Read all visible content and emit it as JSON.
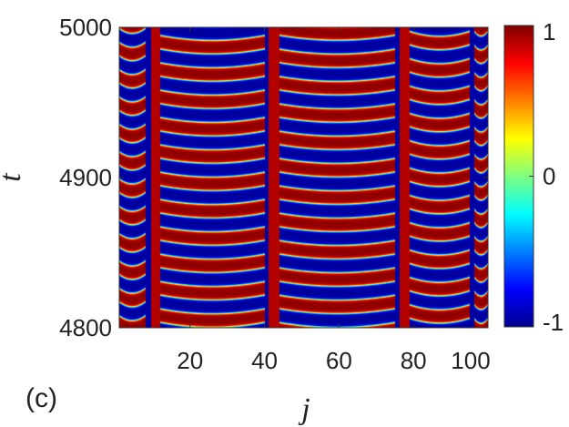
{
  "chart_data": {
    "type": "heatmap",
    "title": "",
    "panel_label": "(c)",
    "xlabel": "j",
    "ylabel": "t",
    "xlim": [
      1,
      100
    ],
    "ylim": [
      4800,
      5000
    ],
    "x_ticks": [
      20,
      40,
      60,
      80,
      100
    ],
    "y_ticks": [
      4800,
      4900,
      5000
    ],
    "colorbar": {
      "range": [
        -1,
        1
      ],
      "ticks": [
        -1,
        0,
        1
      ],
      "colormap": "jet"
    },
    "pattern": {
      "description_free_params": true,
      "period_t": 18.2,
      "domains": [
        {
          "x": [
            1,
            8
          ],
          "kind": "oscillating",
          "phase": 0.5
        },
        {
          "x": [
            8,
            9.6
          ],
          "kind": "stripe_blue"
        },
        {
          "x": [
            9.6,
            12
          ],
          "kind": "stripe_red"
        },
        {
          "x": [
            12,
            40
          ],
          "kind": "oscillating",
          "phase": 0.25
        },
        {
          "x": [
            40,
            41.2
          ],
          "kind": "stripe_blue"
        },
        {
          "x": [
            41.2,
            44
          ],
          "kind": "stripe_red"
        },
        {
          "x": [
            44,
            75
          ],
          "kind": "oscillating",
          "phase": 0.75
        },
        {
          "x": [
            75,
            76.3
          ],
          "kind": "stripe_blue"
        },
        {
          "x": [
            76.3,
            79
          ],
          "kind": "stripe_red"
        },
        {
          "x": [
            79,
            95
          ],
          "kind": "oscillating",
          "phase": 0.1
        },
        {
          "x": [
            95,
            96.3
          ],
          "kind": "stripe_blue"
        },
        {
          "x": [
            96.3,
            100
          ],
          "kind": "oscillating",
          "phase": 0.6
        }
      ]
    }
  }
}
